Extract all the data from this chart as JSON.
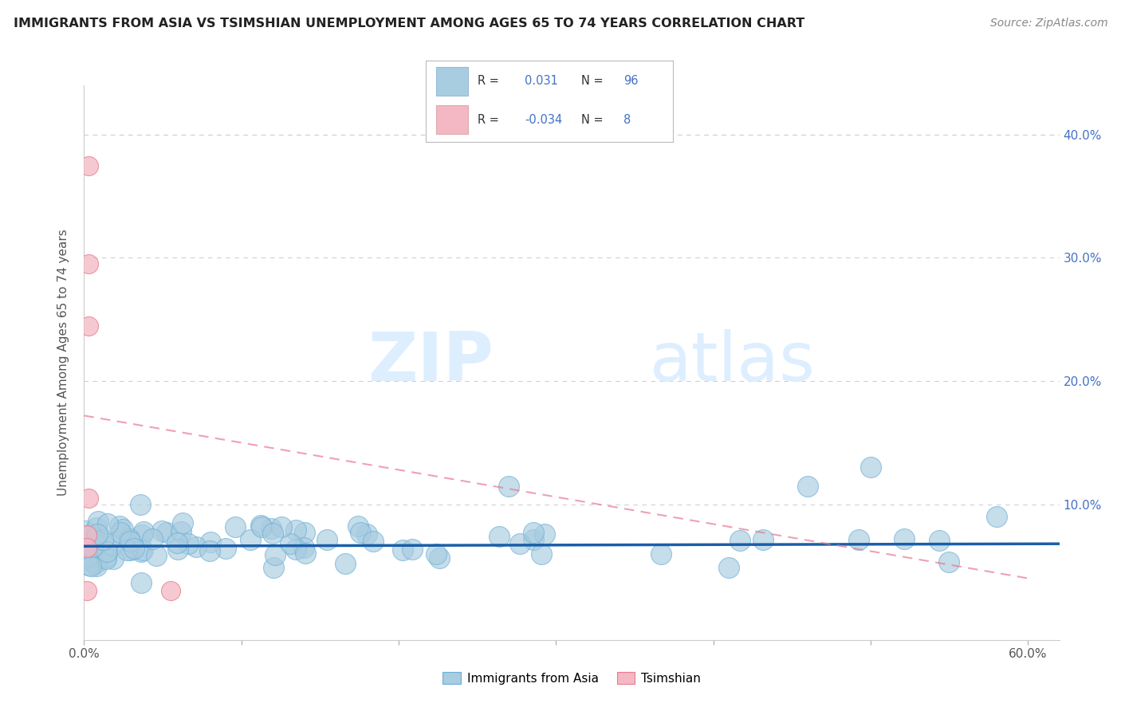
{
  "title": "IMMIGRANTS FROM ASIA VS TSIMSHIAN UNEMPLOYMENT AMONG AGES 65 TO 74 YEARS CORRELATION CHART",
  "source": "Source: ZipAtlas.com",
  "ylabel": "Unemployment Among Ages 65 to 74 years",
  "xlim": [
    0.0,
    0.62
  ],
  "ylim": [
    -0.01,
    0.44
  ],
  "ytick_vals": [
    0.0,
    0.1,
    0.2,
    0.3,
    0.4
  ],
  "ytick_labels_left": [
    "",
    "",
    "",
    "",
    ""
  ],
  "ytick_labels_right": [
    "",
    "10.0%",
    "20.0%",
    "30.0%",
    "40.0%"
  ],
  "xtick_vals": [
    0.0,
    0.1,
    0.2,
    0.3,
    0.4,
    0.5,
    0.6
  ],
  "xtick_labels": [
    "0.0%",
    "",
    "",
    "",
    "",
    "",
    "60.0%"
  ],
  "legend_r_blue": "0.031",
  "legend_n_blue": "96",
  "legend_r_pink": "-0.034",
  "legend_n_pink": "8",
  "blue_color": "#a8cce0",
  "blue_edge_color": "#6aaed6",
  "pink_color": "#f4b8c4",
  "pink_edge_color": "#e87a8f",
  "blue_line_color": "#1a5ea8",
  "pink_line_color": "#e87a8f",
  "bg_color": "#ffffff",
  "grid_color": "#d0d0d0",
  "pink_x": [
    0.003,
    0.003,
    0.003,
    0.003,
    0.002,
    0.002,
    0.055,
    0.002
  ],
  "pink_y": [
    0.375,
    0.295,
    0.245,
    0.105,
    0.075,
    0.065,
    0.03,
    0.03
  ],
  "pink_trend_x0": 0.0,
  "pink_trend_y0": 0.172,
  "pink_trend_x1": 0.6,
  "pink_trend_y1": 0.04,
  "blue_trend_y": 0.066
}
